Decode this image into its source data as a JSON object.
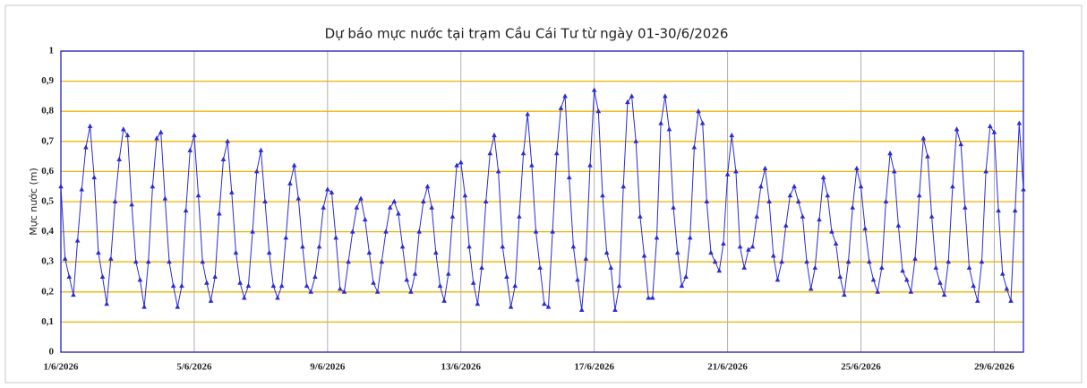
{
  "chart_data": {
    "type": "line",
    "title": "Dự báo mực nước tại trạm Cầu Cái Tư từ ngày 01-30/6/2026",
    "y_label": "Mực nước (m)",
    "xlim": [
      0,
      693
    ],
    "xticks": [
      {
        "value": 0,
        "label": "1/6/2026"
      },
      {
        "value": 96,
        "label": "5/6/2026"
      },
      {
        "value": 192,
        "label": "9/6/2026"
      },
      {
        "value": 288,
        "label": "13/6/2026"
      },
      {
        "value": 384,
        "label": "17/6/2026"
      },
      {
        "value": 480,
        "label": "21/6/2026"
      },
      {
        "value": 576,
        "label": "25/6/2026"
      },
      {
        "value": 672,
        "label": "29/6/2026"
      }
    ],
    "ylim": [
      0,
      1
    ],
    "yticks": [
      0,
      {
        "value": 0.1,
        "label": "0,1"
      },
      {
        "value": 0.2,
        "label": "0,2"
      },
      {
        "value": 0.3,
        "label": "0,3"
      },
      {
        "value": 0.4,
        "label": "0,4"
      },
      {
        "value": 0.5,
        "label": "0,5"
      },
      {
        "value": 0.6,
        "label": "0,6"
      },
      {
        "value": 0.7,
        "label": "0,7"
      },
      {
        "value": 0.8,
        "label": "0,8"
      },
      {
        "value": 0.9,
        "label": "0,9"
      },
      1
    ],
    "grid": true,
    "x": [
      0,
      3,
      6,
      9,
      12,
      15,
      18,
      21,
      24,
      27,
      30,
      33,
      36,
      39,
      42,
      45,
      48,
      51,
      54,
      57,
      60,
      63,
      66,
      69,
      72,
      75,
      78,
      81,
      84,
      87,
      90,
      93,
      96,
      99,
      102,
      105,
      108,
      111,
      114,
      117,
      120,
      123,
      126,
      129,
      132,
      135,
      138,
      141,
      144,
      147,
      150,
      153,
      156,
      159,
      162,
      165,
      168,
      171,
      174,
      177,
      180,
      183,
      186,
      189,
      192,
      195,
      198,
      201,
      204,
      207,
      210,
      213,
      216,
      219,
      222,
      225,
      228,
      231,
      234,
      237,
      240,
      243,
      246,
      249,
      252,
      255,
      258,
      261,
      264,
      267,
      270,
      273,
      276,
      279,
      282,
      285,
      288,
      291,
      294,
      297,
      300,
      303,
      306,
      309,
      312,
      315,
      318,
      321,
      324,
      327,
      330,
      333,
      336,
      339,
      342,
      345,
      348,
      351,
      354,
      357,
      360,
      363,
      366,
      369,
      372,
      375,
      378,
      381,
      384,
      387,
      390,
      393,
      396,
      399,
      402,
      405,
      408,
      411,
      414,
      417,
      420,
      423,
      426,
      429,
      432,
      435,
      438,
      441,
      444,
      447,
      450,
      453,
      456,
      459,
      462,
      465,
      468,
      471,
      474,
      477,
      480,
      483,
      486,
      489,
      492,
      495,
      498,
      501,
      504,
      507,
      510,
      513,
      516,
      519,
      522,
      525,
      528,
      531,
      534,
      537,
      540,
      543,
      546,
      549,
      552,
      555,
      558,
      561,
      564,
      567,
      570,
      573,
      576,
      579,
      582,
      585,
      588,
      591,
      594,
      597,
      600,
      603,
      606,
      609,
      612,
      615,
      618,
      621,
      624,
      627,
      630,
      633,
      636,
      639,
      642,
      645,
      648,
      651,
      654,
      657,
      660,
      663,
      666,
      669,
      672,
      675,
      678,
      681,
      684,
      687,
      690,
      693
    ],
    "series": [
      {
        "name": "Mực nước",
        "color": "#2b2bd6",
        "values": [
          0.55,
          0.31,
          0.25,
          0.19,
          0.37,
          0.54,
          0.68,
          0.75,
          0.58,
          0.33,
          0.25,
          0.16,
          0.31,
          0.5,
          0.64,
          0.74,
          0.72,
          0.49,
          0.3,
          0.24,
          0.15,
          0.3,
          0.55,
          0.71,
          0.73,
          0.51,
          0.3,
          0.22,
          0.15,
          0.22,
          0.47,
          0.67,
          0.72,
          0.52,
          0.3,
          0.23,
          0.17,
          0.25,
          0.46,
          0.64,
          0.7,
          0.53,
          0.33,
          0.23,
          0.18,
          0.22,
          0.4,
          0.6,
          0.67,
          0.5,
          0.33,
          0.22,
          0.18,
          0.22,
          0.38,
          0.56,
          0.62,
          0.51,
          0.35,
          0.22,
          0.2,
          0.25,
          0.35,
          0.48,
          0.54,
          0.53,
          0.38,
          0.21,
          0.2,
          0.3,
          0.4,
          0.48,
          0.51,
          0.44,
          0.33,
          0.23,
          0.2,
          0.3,
          0.4,
          0.48,
          0.5,
          0.46,
          0.35,
          0.24,
          0.2,
          0.26,
          0.4,
          0.5,
          0.55,
          0.48,
          0.33,
          0.22,
          0.17,
          0.26,
          0.45,
          0.62,
          0.63,
          0.52,
          0.35,
          0.23,
          0.16,
          0.28,
          0.5,
          0.66,
          0.72,
          0.6,
          0.35,
          0.25,
          0.15,
          0.22,
          0.45,
          0.66,
          0.79,
          0.62,
          0.4,
          0.28,
          0.16,
          0.15,
          0.4,
          0.66,
          0.81,
          0.85,
          0.58,
          0.35,
          0.24,
          0.14,
          0.31,
          0.62,
          0.87,
          0.8,
          0.52,
          0.33,
          0.28,
          0.14,
          0.22,
          0.55,
          0.83,
          0.85,
          0.7,
          0.45,
          0.32,
          0.18,
          0.18,
          0.38,
          0.76,
          0.85,
          0.74,
          0.48,
          0.33,
          0.22,
          0.25,
          0.38,
          0.68,
          0.8,
          0.76,
          0.5,
          0.33,
          0.3,
          0.27,
          0.36,
          0.59,
          0.72,
          0.6,
          0.35,
          0.28,
          0.34,
          0.35,
          0.45,
          0.55,
          0.61,
          0.5,
          0.32,
          0.24,
          0.3,
          0.42,
          0.52,
          0.55,
          0.5,
          0.45,
          0.3,
          0.21,
          0.28,
          0.44,
          0.58,
          0.52,
          0.4,
          0.36,
          0.25,
          0.19,
          0.3,
          0.48,
          0.61,
          0.55,
          0.41,
          0.3,
          0.24,
          0.2,
          0.28,
          0.5,
          0.66,
          0.6,
          0.42,
          0.27,
          0.24,
          0.2,
          0.31,
          0.52,
          0.71,
          0.65,
          0.45,
          0.28,
          0.23,
          0.19,
          0.3,
          0.55,
          0.74,
          0.69,
          0.48,
          0.28,
          0.22,
          0.17,
          0.3,
          0.6,
          0.75,
          0.73,
          0.47,
          0.26,
          0.21,
          0.17,
          0.47,
          0.76,
          0.54
        ]
      }
    ]
  }
}
